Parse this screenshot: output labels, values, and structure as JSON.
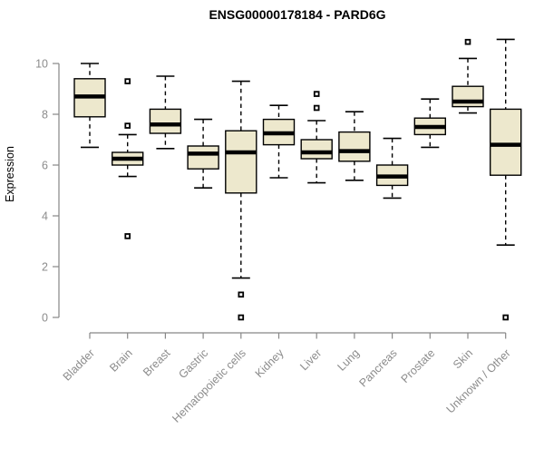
{
  "chart_data": {
    "type": "boxplot",
    "title": "ENSG00000178184 - PARD6G",
    "ylabel": "Expression",
    "xlabel": "",
    "grid": false,
    "legend": null,
    "y_axis": {
      "ticks": [
        0,
        2,
        4,
        6,
        8,
        10
      ],
      "range": [
        0,
        11.2
      ]
    },
    "categories": [
      "Bladder",
      "Brain",
      "Breast",
      "Gastric",
      "Hematopoietic cells",
      "Kidney",
      "Liver",
      "Lung",
      "Pancreas",
      "Prostate",
      "Skin",
      "Unknown / Other"
    ],
    "boxes": [
      {
        "label": "Bladder",
        "whisker_low": 6.7,
        "q1": 7.9,
        "median": 8.7,
        "q3": 9.4,
        "whisker_high": 10.0,
        "outliers": []
      },
      {
        "label": "Brain",
        "whisker_low": 5.55,
        "q1": 6.0,
        "median": 6.25,
        "q3": 6.5,
        "whisker_high": 7.2,
        "outliers": [
          9.3,
          7.55,
          3.2
        ]
      },
      {
        "label": "Breast",
        "whisker_low": 6.65,
        "q1": 7.25,
        "median": 7.6,
        "q3": 8.2,
        "whisker_high": 9.5,
        "outliers": []
      },
      {
        "label": "Gastric",
        "whisker_low": 5.1,
        "q1": 5.85,
        "median": 6.45,
        "q3": 6.75,
        "whisker_high": 7.8,
        "outliers": []
      },
      {
        "label": "Hematopoietic cells",
        "whisker_low": 1.55,
        "q1": 4.9,
        "median": 6.5,
        "q3": 7.35,
        "whisker_high": 9.3,
        "outliers": [
          0.9,
          0.0
        ]
      },
      {
        "label": "Kidney",
        "whisker_low": 5.5,
        "q1": 6.8,
        "median": 7.25,
        "q3": 7.8,
        "whisker_high": 8.35,
        "outliers": []
      },
      {
        "label": "Liver",
        "whisker_low": 5.3,
        "q1": 6.25,
        "median": 6.5,
        "q3": 7.0,
        "whisker_high": 7.75,
        "outliers": [
          8.8,
          8.25
        ]
      },
      {
        "label": "Lung",
        "whisker_low": 5.4,
        "q1": 6.15,
        "median": 6.55,
        "q3": 7.3,
        "whisker_high": 8.1,
        "outliers": []
      },
      {
        "label": "Pancreas",
        "whisker_low": 4.7,
        "q1": 5.2,
        "median": 5.55,
        "q3": 6.0,
        "whisker_high": 7.05,
        "outliers": []
      },
      {
        "label": "Prostate",
        "whisker_low": 6.7,
        "q1": 7.2,
        "median": 7.5,
        "q3": 7.85,
        "whisker_high": 8.6,
        "outliers": []
      },
      {
        "label": "Skin",
        "whisker_low": 8.05,
        "q1": 8.3,
        "median": 8.5,
        "q3": 9.1,
        "whisker_high": 10.2,
        "outliers": [
          10.85
        ]
      },
      {
        "label": "Unknown / Other",
        "whisker_low": 2.85,
        "q1": 5.6,
        "median": 6.8,
        "q3": 8.2,
        "whisker_high": 10.95,
        "outliers": [
          0.0
        ]
      }
    ],
    "colors": {
      "box_fill": "#ede8cd",
      "box_stroke": "#000000",
      "median": "#000000",
      "outlier_stroke": "#000000",
      "axis": "#878787",
      "tick_label": "#8c8c8c",
      "title": "#000000",
      "background": "#ffffff"
    }
  }
}
